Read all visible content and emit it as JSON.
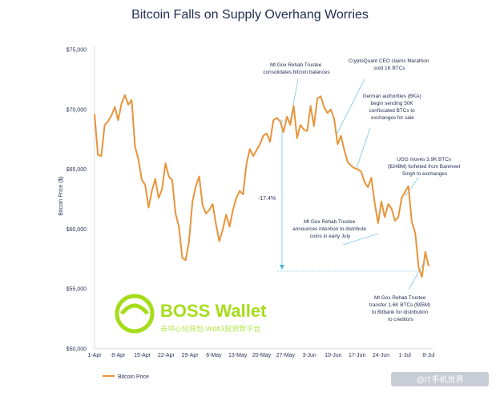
{
  "chart_data": {
    "type": "line",
    "title": "Bitcoin Falls on Supply Overhang Worries",
    "ylabel": "Bitcoin Price ($)",
    "ylim": [
      55000,
      75000
    ],
    "y_ticks": [
      "$75,000",
      "$70,000",
      "$65,000",
      "$60,000",
      "$55,000",
      "$50,000"
    ],
    "x_ticks": [
      "1-Apr",
      "8-Apr",
      "15-Apr",
      "22-Apr",
      "29-Apr",
      "6-May",
      "13-May",
      "20-May",
      "27-May",
      "3-Jun",
      "10-Jun",
      "17-Jun",
      "24-Jun",
      "1-Jul",
      "8-Jul"
    ],
    "series": [
      {
        "name": "Bitcoin Price",
        "color": "#e8943a",
        "values": [
          69600,
          66200,
          66100,
          68700,
          69000,
          69500,
          70200,
          69100,
          70500,
          71200,
          70400,
          70800,
          66900,
          65800,
          64100,
          63700,
          61800,
          63200,
          64200,
          62600,
          63300,
          65500,
          64400,
          64100,
          61300,
          60200,
          57600,
          57400,
          59000,
          62300,
          63600,
          64400,
          62000,
          61300,
          61600,
          62100,
          60400,
          59000,
          60000,
          61200,
          60200,
          61600,
          62600,
          63200,
          62900,
          65400,
          66700,
          66100,
          66600,
          67100,
          67800,
          68000,
          67300,
          69100,
          69300,
          69000,
          68100,
          69400,
          68700,
          70300,
          67600,
          68700,
          68300,
          68200,
          70300,
          68600,
          70900,
          71100,
          70200,
          69700,
          70000,
          69200,
          67100,
          67800,
          66600,
          65600,
          65300,
          65100,
          65000,
          64800,
          63900,
          63500,
          64300,
          62200,
          60500,
          62300,
          61000,
          62100,
          61700,
          60700,
          61000,
          62600,
          63100,
          63600,
          60600,
          59700,
          56800,
          56000,
          58100,
          56900
        ]
      }
    ],
    "annotations": [
      "Mt Gox Rehab Trustee consolidates bitcoin balances",
      "CryptoQuant CEO claims Marathon sold 1K BTCs",
      "German authorities (BKA) begin sending 50K confiscated BTCs to exchanges for sale",
      "UGG moves 3.9K BTCs ($248M) forfeited from Banmeet Singh to exchanges",
      "Mt Gox Rehab Trustee announces intention to distribute coins in early July",
      "Mt Gox Rehab Trustee transfer 1.6K BTCs ($95M) to Bitbank for distribution to creditors",
      "-17.4%"
    ],
    "grid": false,
    "legend": "bottom-left"
  },
  "watermark": {
    "title": "BOSS Wallet",
    "subtitle": "去中心化钱包·Web3投资新平台"
  },
  "corner_mark": "@IT手机世界",
  "colors": {
    "line": "#e8943a",
    "text": "#1f2d52",
    "annotation_line": "#4ab3e0",
    "watermark": "#a6dd1a"
  }
}
